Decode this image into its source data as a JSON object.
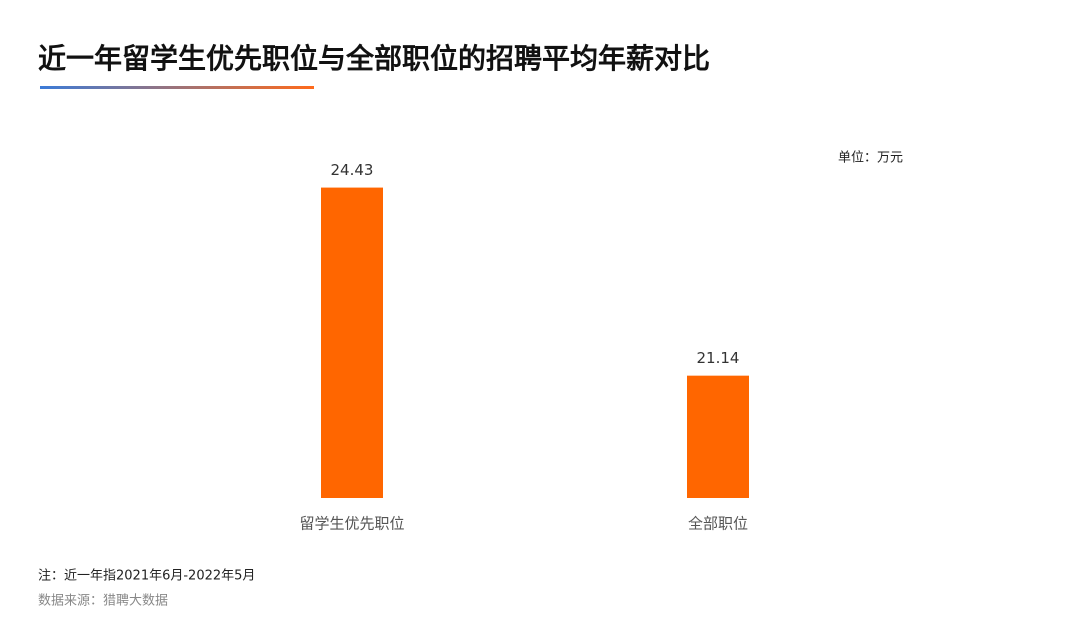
{
  "chart_data": {
    "type": "bar",
    "title": "近一年留学生优先职位与全部职位的招聘平均年薪对比",
    "unit": "单位：万元",
    "categories": [
      "留学生优先职位",
      "全部职位"
    ],
    "values": [
      24.43,
      21.14
    ],
    "color": "#ff6600",
    "ylim": [
      19,
      25
    ],
    "note": "注：近一年指2021年6月-2022年5月",
    "source": "数据来源：猎聘大数据"
  }
}
